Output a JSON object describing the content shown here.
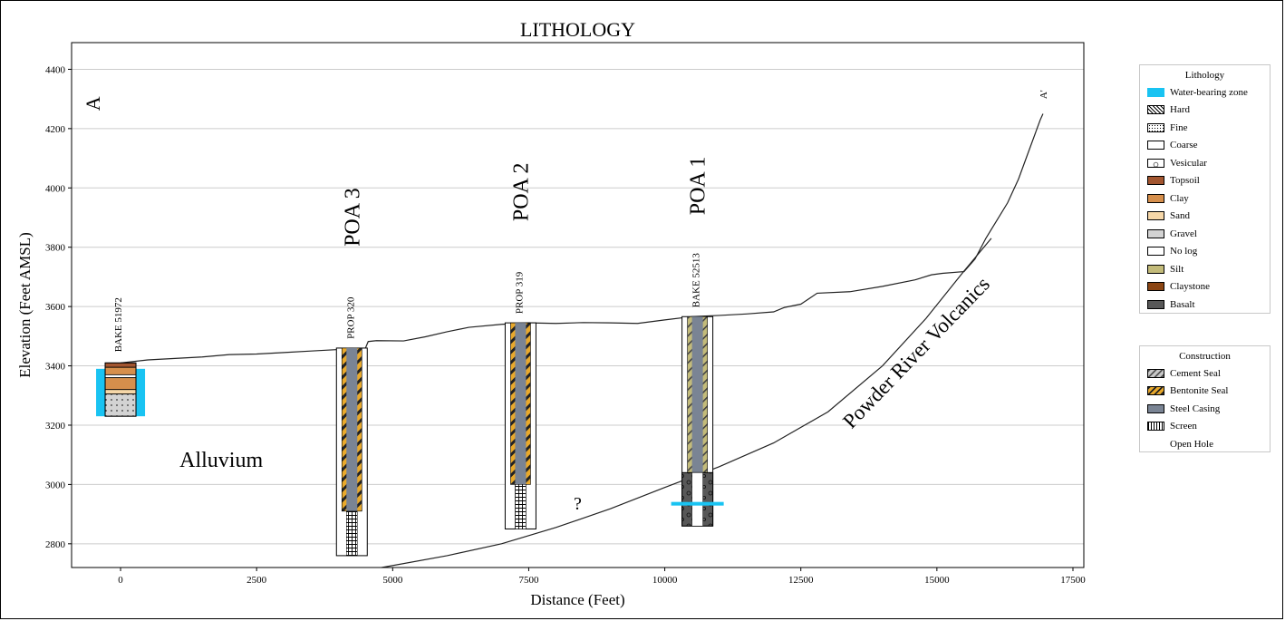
{
  "chart_data": {
    "type": "cross-section",
    "title": "LITHOLOGY",
    "xlabel": "Distance (Feet)",
    "ylabel": "Elevation (Feet AMSL)",
    "xlim": [
      -900,
      17700
    ],
    "ylim": [
      2720,
      4490
    ],
    "xticks": [
      0,
      2500,
      5000,
      7500,
      10000,
      12500,
      15000,
      17500
    ],
    "yticks": [
      2800,
      3000,
      3200,
      3400,
      3600,
      3800,
      4000,
      4200,
      4400
    ],
    "grid": "horizontal",
    "ground_surface": [
      [
        0,
        3410
      ],
      [
        500,
        3420
      ],
      [
        1000,
        3425
      ],
      [
        1500,
        3430
      ],
      [
        2000,
        3438
      ],
      [
        2500,
        3440
      ],
      [
        3000,
        3445
      ],
      [
        3500,
        3450
      ],
      [
        4000,
        3455
      ],
      [
        4500,
        3460
      ],
      [
        4550,
        3482
      ],
      [
        4700,
        3485
      ],
      [
        5200,
        3484
      ],
      [
        5600,
        3498
      ],
      [
        6000,
        3515
      ],
      [
        6400,
        3530
      ],
      [
        7000,
        3540
      ],
      [
        7500,
        3545
      ],
      [
        8000,
        3543
      ],
      [
        8500,
        3546
      ],
      [
        9000,
        3545
      ],
      [
        9500,
        3543
      ],
      [
        10000,
        3555
      ],
      [
        10500,
        3566
      ],
      [
        11000,
        3570
      ],
      [
        11500,
        3575
      ],
      [
        12000,
        3582
      ],
      [
        12200,
        3597
      ],
      [
        12500,
        3608
      ],
      [
        12800,
        3645
      ],
      [
        13400,
        3650
      ],
      [
        14000,
        3668
      ],
      [
        14600,
        3690
      ],
      [
        14900,
        3707
      ],
      [
        15100,
        3712
      ],
      [
        15500,
        3718
      ],
      [
        15700,
        3760
      ],
      [
        15900,
        3830
      ],
      [
        16100,
        3890
      ],
      [
        16300,
        3950
      ],
      [
        16500,
        4030
      ],
      [
        16700,
        4130
      ],
      [
        16900,
        4230
      ],
      [
        16950,
        4250
      ]
    ],
    "volcanics_contact": [
      [
        4800,
        2720
      ],
      [
        6000,
        2760
      ],
      [
        7000,
        2800
      ],
      [
        8000,
        2855
      ],
      [
        9000,
        2918
      ],
      [
        10000,
        2990
      ],
      [
        11000,
        3060
      ],
      [
        12000,
        3140
      ],
      [
        13000,
        3245
      ],
      [
        14000,
        3400
      ],
      [
        14800,
        3560
      ],
      [
        15500,
        3720
      ],
      [
        16000,
        3830
      ]
    ],
    "wells": [
      {
        "name": "BAKE 51972",
        "x": 0,
        "top": 3410,
        "bottom": 3230,
        "layers": [
          {
            "from": 3410,
            "to": 3395,
            "material": "Topsoil"
          },
          {
            "from": 3395,
            "to": 3370,
            "material": "Clay"
          },
          {
            "from": 3370,
            "to": 3360,
            "material": "Fine"
          },
          {
            "from": 3360,
            "to": 3320,
            "material": "Clay"
          },
          {
            "from": 3320,
            "to": 3305,
            "material": "Sand"
          },
          {
            "from": 3305,
            "to": 3230,
            "material": "Gravel"
          }
        ],
        "water_zone": [
          3390,
          3230
        ]
      },
      {
        "name": "PROP  320",
        "label": "POA 3",
        "x": 4250,
        "top": 3460,
        "bottom": 2760,
        "seal": "Bentonite Seal",
        "casing_bottom": 2910,
        "screen": [
          2910,
          2760
        ]
      },
      {
        "name": "PROP  319",
        "label": "POA 2",
        "x": 7350,
        "top": 3545,
        "bottom": 2850,
        "seal": "Bentonite Seal",
        "casing_bottom": 3000,
        "screen": [
          3000,
          2850
        ]
      },
      {
        "name": "BAKE 52513",
        "label": "POA 1",
        "x": 10600,
        "top": 3566,
        "bottom": 2860,
        "seal": "Cement Seal",
        "casing_bottom": 3040,
        "open_hole": [
          3040,
          2860
        ],
        "water_zone_at": 2935
      }
    ],
    "annotations": [
      "A",
      "A'",
      "Alluvium",
      "?",
      "Powder River Volcanics"
    ],
    "legends": [
      {
        "title": "Lithology",
        "placement": "right-top",
        "entries": [
          "Water-bearing zone",
          "Hard",
          "Fine",
          "Coarse",
          "Vesicular",
          "Topsoil",
          "Clay",
          "Sand",
          "Gravel",
          "No log",
          "Silt",
          "Claystone",
          "Basalt"
        ]
      },
      {
        "title": "Construction",
        "placement": "right-middle",
        "entries": [
          "Cement Seal",
          "Bentonite Seal",
          "Steel Casing",
          "Screen",
          "Open Hole"
        ]
      }
    ]
  },
  "colors": {
    "water": "#19c3f2",
    "topsoil": "#a2552f",
    "clay": "#d68f4c",
    "sand": "#f6d7a8",
    "gravel": "#d3d3d3",
    "silt": "#c3bb7a",
    "claystone": "#8b4513",
    "basalt": "#585858",
    "casing": "#7a8494",
    "bentonite": "#e9a92b",
    "cement": "#b9b9b9",
    "grid": "#cccccc"
  },
  "legend_lithology": {
    "title": "Lithology",
    "items": [
      {
        "label": "Water-bearing zone",
        "swatch": "water"
      },
      {
        "label": "Hard",
        "swatch": "hard"
      },
      {
        "label": "Fine",
        "swatch": "fine"
      },
      {
        "label": "Coarse",
        "swatch": "coarse"
      },
      {
        "label": "Vesicular",
        "swatch": "vesicular"
      },
      {
        "label": "Topsoil",
        "swatch": "topsoil"
      },
      {
        "label": "Clay",
        "swatch": "clay"
      },
      {
        "label": "Sand",
        "swatch": "sand"
      },
      {
        "label": "Gravel",
        "swatch": "gravel"
      },
      {
        "label": "No log",
        "swatch": "nolog"
      },
      {
        "label": "Silt",
        "swatch": "silt"
      },
      {
        "label": "Claystone",
        "swatch": "claystone"
      },
      {
        "label": "Basalt",
        "swatch": "basalt"
      }
    ]
  },
  "legend_construction": {
    "title": "Construction",
    "items": [
      {
        "label": "Cement Seal",
        "swatch": "cement"
      },
      {
        "label": "Bentonite Seal",
        "swatch": "bentonite"
      },
      {
        "label": "Steel Casing",
        "swatch": "casing"
      },
      {
        "label": "Screen",
        "swatch": "screen"
      },
      {
        "label": "Open Hole",
        "swatch": "openhole"
      }
    ]
  }
}
